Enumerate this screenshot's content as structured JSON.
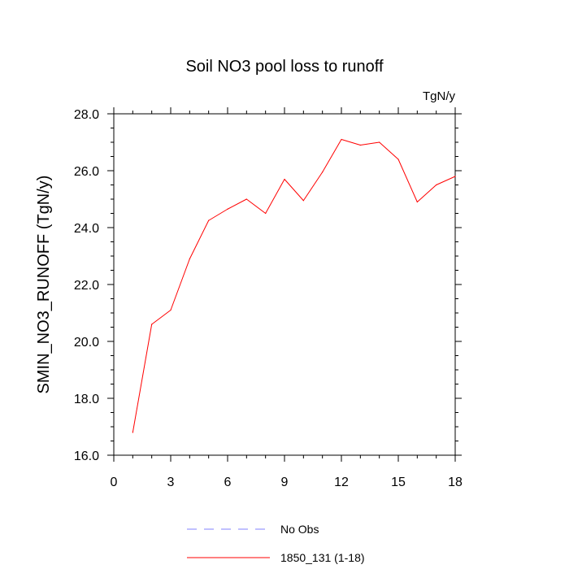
{
  "chart_data": {
    "type": "line",
    "title": "Soil NO3 pool loss to runoff",
    "units_label": "TgN/y",
    "ylabel": "SMIN_NO3_RUNOFF  (TgN/y)",
    "xlabel": "",
    "xlim": [
      0,
      18
    ],
    "ylim": [
      16,
      28
    ],
    "x_ticks": [
      0,
      3,
      6,
      9,
      12,
      15,
      18
    ],
    "x_tick_labels": [
      "0",
      "3",
      "6",
      "9",
      "12",
      "15",
      "18"
    ],
    "y_ticks": [
      16,
      18,
      20,
      22,
      24,
      26,
      28
    ],
    "y_tick_labels": [
      "16.0",
      "18.0",
      "20.0",
      "22.0",
      "24.0",
      "26.0",
      "28.0"
    ],
    "grid": false,
    "legend_position": "bottom",
    "series": [
      {
        "name": "1850_131 (1-18)",
        "color": "#ff0000",
        "dash": "solid",
        "x": [
          1,
          2,
          3,
          4,
          5,
          6,
          7,
          8,
          9,
          10,
          11,
          12,
          13,
          14,
          15,
          16,
          17,
          18
        ],
        "y": [
          16.8,
          20.6,
          21.1,
          22.9,
          24.25,
          24.65,
          25.0,
          24.5,
          25.7,
          24.95,
          25.95,
          27.1,
          26.9,
          27.0,
          26.4,
          24.9,
          25.5,
          25.8
        ]
      }
    ],
    "legend": [
      {
        "label": "No Obs",
        "color": "#8080ff",
        "dash": "dashed"
      },
      {
        "label": "1850_131 (1-18)",
        "color": "#ff0000",
        "dash": "solid"
      }
    ]
  }
}
